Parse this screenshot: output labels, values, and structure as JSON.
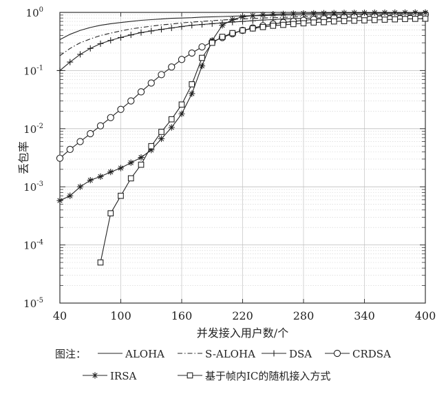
{
  "chart_data": {
    "type": "line",
    "title": "",
    "xlabel": "并发接入用户数/个",
    "ylabel": "丢包率",
    "xlim": [
      40,
      400
    ],
    "ylim": [
      1e-05,
      1
    ],
    "yscale": "log",
    "grid": true,
    "x_ticks": [
      "40",
      "100",
      "160",
      "220",
      "280",
      "340",
      "400"
    ],
    "y_ticks": [
      {
        "base": "10",
        "exp": "0"
      },
      {
        "base": "10",
        "exp": "-1"
      },
      {
        "base": "10",
        "exp": "-2"
      },
      {
        "base": "10",
        "exp": "-3"
      },
      {
        "base": "10",
        "exp": "-4"
      },
      {
        "base": "10",
        "exp": "-5"
      }
    ],
    "legend": {
      "prefix": "图注：",
      "placement": "bottom"
    },
    "series": [
      {
        "name": "ALOHA",
        "marker": "none",
        "dash": "solid",
        "x": [
          40,
          50,
          60,
          70,
          80,
          90,
          100,
          110,
          120,
          130,
          140,
          150,
          160,
          170,
          180,
          190,
          200,
          220,
          240,
          260,
          280,
          300,
          320,
          340,
          360,
          380,
          400
        ],
        "y": [
          0.34,
          0.42,
          0.49,
          0.55,
          0.6,
          0.64,
          0.67,
          0.7,
          0.73,
          0.75,
          0.77,
          0.79,
          0.8,
          0.81,
          0.83,
          0.84,
          0.85,
          0.87,
          0.88,
          0.9,
          0.91,
          0.92,
          0.93,
          0.94,
          0.95,
          0.955,
          0.96
        ]
      },
      {
        "name": "S-ALOHA",
        "marker": "none",
        "dash": "dashdot",
        "x": [
          40,
          50,
          60,
          70,
          80,
          90,
          100,
          110,
          120,
          130,
          140,
          150,
          160,
          170,
          180,
          190,
          200,
          220,
          240,
          260,
          280,
          300,
          320,
          340,
          360,
          380,
          400
        ],
        "y": [
          0.18,
          0.24,
          0.3,
          0.35,
          0.4,
          0.44,
          0.48,
          0.52,
          0.55,
          0.58,
          0.61,
          0.63,
          0.66,
          0.68,
          0.7,
          0.72,
          0.74,
          0.77,
          0.8,
          0.82,
          0.85,
          0.87,
          0.88,
          0.9,
          0.91,
          0.92,
          0.93
        ]
      },
      {
        "name": "DSA",
        "marker": "plus",
        "dash": "solid",
        "x": [
          40,
          50,
          60,
          70,
          80,
          90,
          100,
          110,
          120,
          130,
          140,
          150,
          160,
          170,
          180,
          190,
          200,
          210,
          220,
          230,
          240,
          250,
          260,
          270,
          280,
          290,
          300,
          310,
          320,
          330,
          340,
          350,
          360,
          370,
          380,
          390,
          400
        ],
        "y": [
          0.1,
          0.14,
          0.19,
          0.24,
          0.29,
          0.33,
          0.37,
          0.41,
          0.45,
          0.48,
          0.51,
          0.54,
          0.57,
          0.6,
          0.62,
          0.64,
          0.66,
          0.68,
          0.7,
          0.72,
          0.74,
          0.75,
          0.77,
          0.78,
          0.79,
          0.8,
          0.81,
          0.82,
          0.83,
          0.84,
          0.85,
          0.86,
          0.87,
          0.88,
          0.88,
          0.89,
          0.9
        ]
      },
      {
        "name": "CRDSA",
        "marker": "circle",
        "dash": "solid",
        "x": [
          40,
          50,
          60,
          70,
          80,
          90,
          100,
          110,
          120,
          130,
          140,
          150,
          160,
          170,
          180,
          190,
          200,
          210,
          220,
          230,
          240,
          250,
          260,
          270,
          280,
          290,
          300,
          310,
          320,
          330,
          340,
          350,
          360,
          370,
          380,
          390,
          400
        ],
        "y": [
          0.0031,
          0.0044,
          0.006,
          0.0082,
          0.0112,
          0.0155,
          0.0215,
          0.03,
          0.043,
          0.061,
          0.085,
          0.115,
          0.155,
          0.2,
          0.255,
          0.31,
          0.37,
          0.43,
          0.49,
          0.54,
          0.59,
          0.63,
          0.67,
          0.7,
          0.73,
          0.76,
          0.78,
          0.8,
          0.82,
          0.84,
          0.85,
          0.87,
          0.88,
          0.89,
          0.9,
          0.91,
          0.92
        ]
      },
      {
        "name": "IRSA",
        "marker": "star",
        "dash": "solid",
        "x": [
          40,
          50,
          60,
          70,
          80,
          90,
          100,
          110,
          120,
          130,
          140,
          150,
          160,
          170,
          180,
          190,
          200,
          210,
          220,
          230,
          240,
          250,
          260,
          270,
          280,
          290,
          300,
          310,
          320,
          330,
          340,
          350,
          360,
          370,
          380,
          390,
          400
        ],
        "y": [
          0.00058,
          0.0007,
          0.001,
          0.0013,
          0.0015,
          0.0018,
          0.0021,
          0.0026,
          0.0032,
          0.0043,
          0.0067,
          0.0105,
          0.018,
          0.04,
          0.12,
          0.33,
          0.6,
          0.75,
          0.84,
          0.88,
          0.91,
          0.93,
          0.94,
          0.95,
          0.96,
          0.965,
          0.97,
          0.975,
          0.98,
          0.982,
          0.984,
          0.986,
          0.988,
          0.99,
          0.992,
          0.993,
          0.995
        ]
      },
      {
        "name": "基于帧内IC的随机接入方式",
        "marker": "square",
        "dash": "solid",
        "x": [
          80,
          90,
          100,
          110,
          120,
          130,
          140,
          150,
          160,
          170,
          180,
          190,
          200,
          210,
          220,
          230,
          240,
          250,
          260,
          270,
          280,
          290,
          300,
          310,
          320,
          330,
          340,
          350,
          360,
          370,
          380,
          390,
          400
        ],
        "y": [
          5e-05,
          0.00035,
          0.0007,
          0.0014,
          0.0024,
          0.005,
          0.0088,
          0.0145,
          0.026,
          0.058,
          0.165,
          0.3,
          0.38,
          0.44,
          0.49,
          0.53,
          0.56,
          0.59,
          0.61,
          0.63,
          0.65,
          0.67,
          0.68,
          0.7,
          0.71,
          0.72,
          0.73,
          0.74,
          0.75,
          0.76,
          0.77,
          0.775,
          0.78
        ]
      }
    ]
  }
}
